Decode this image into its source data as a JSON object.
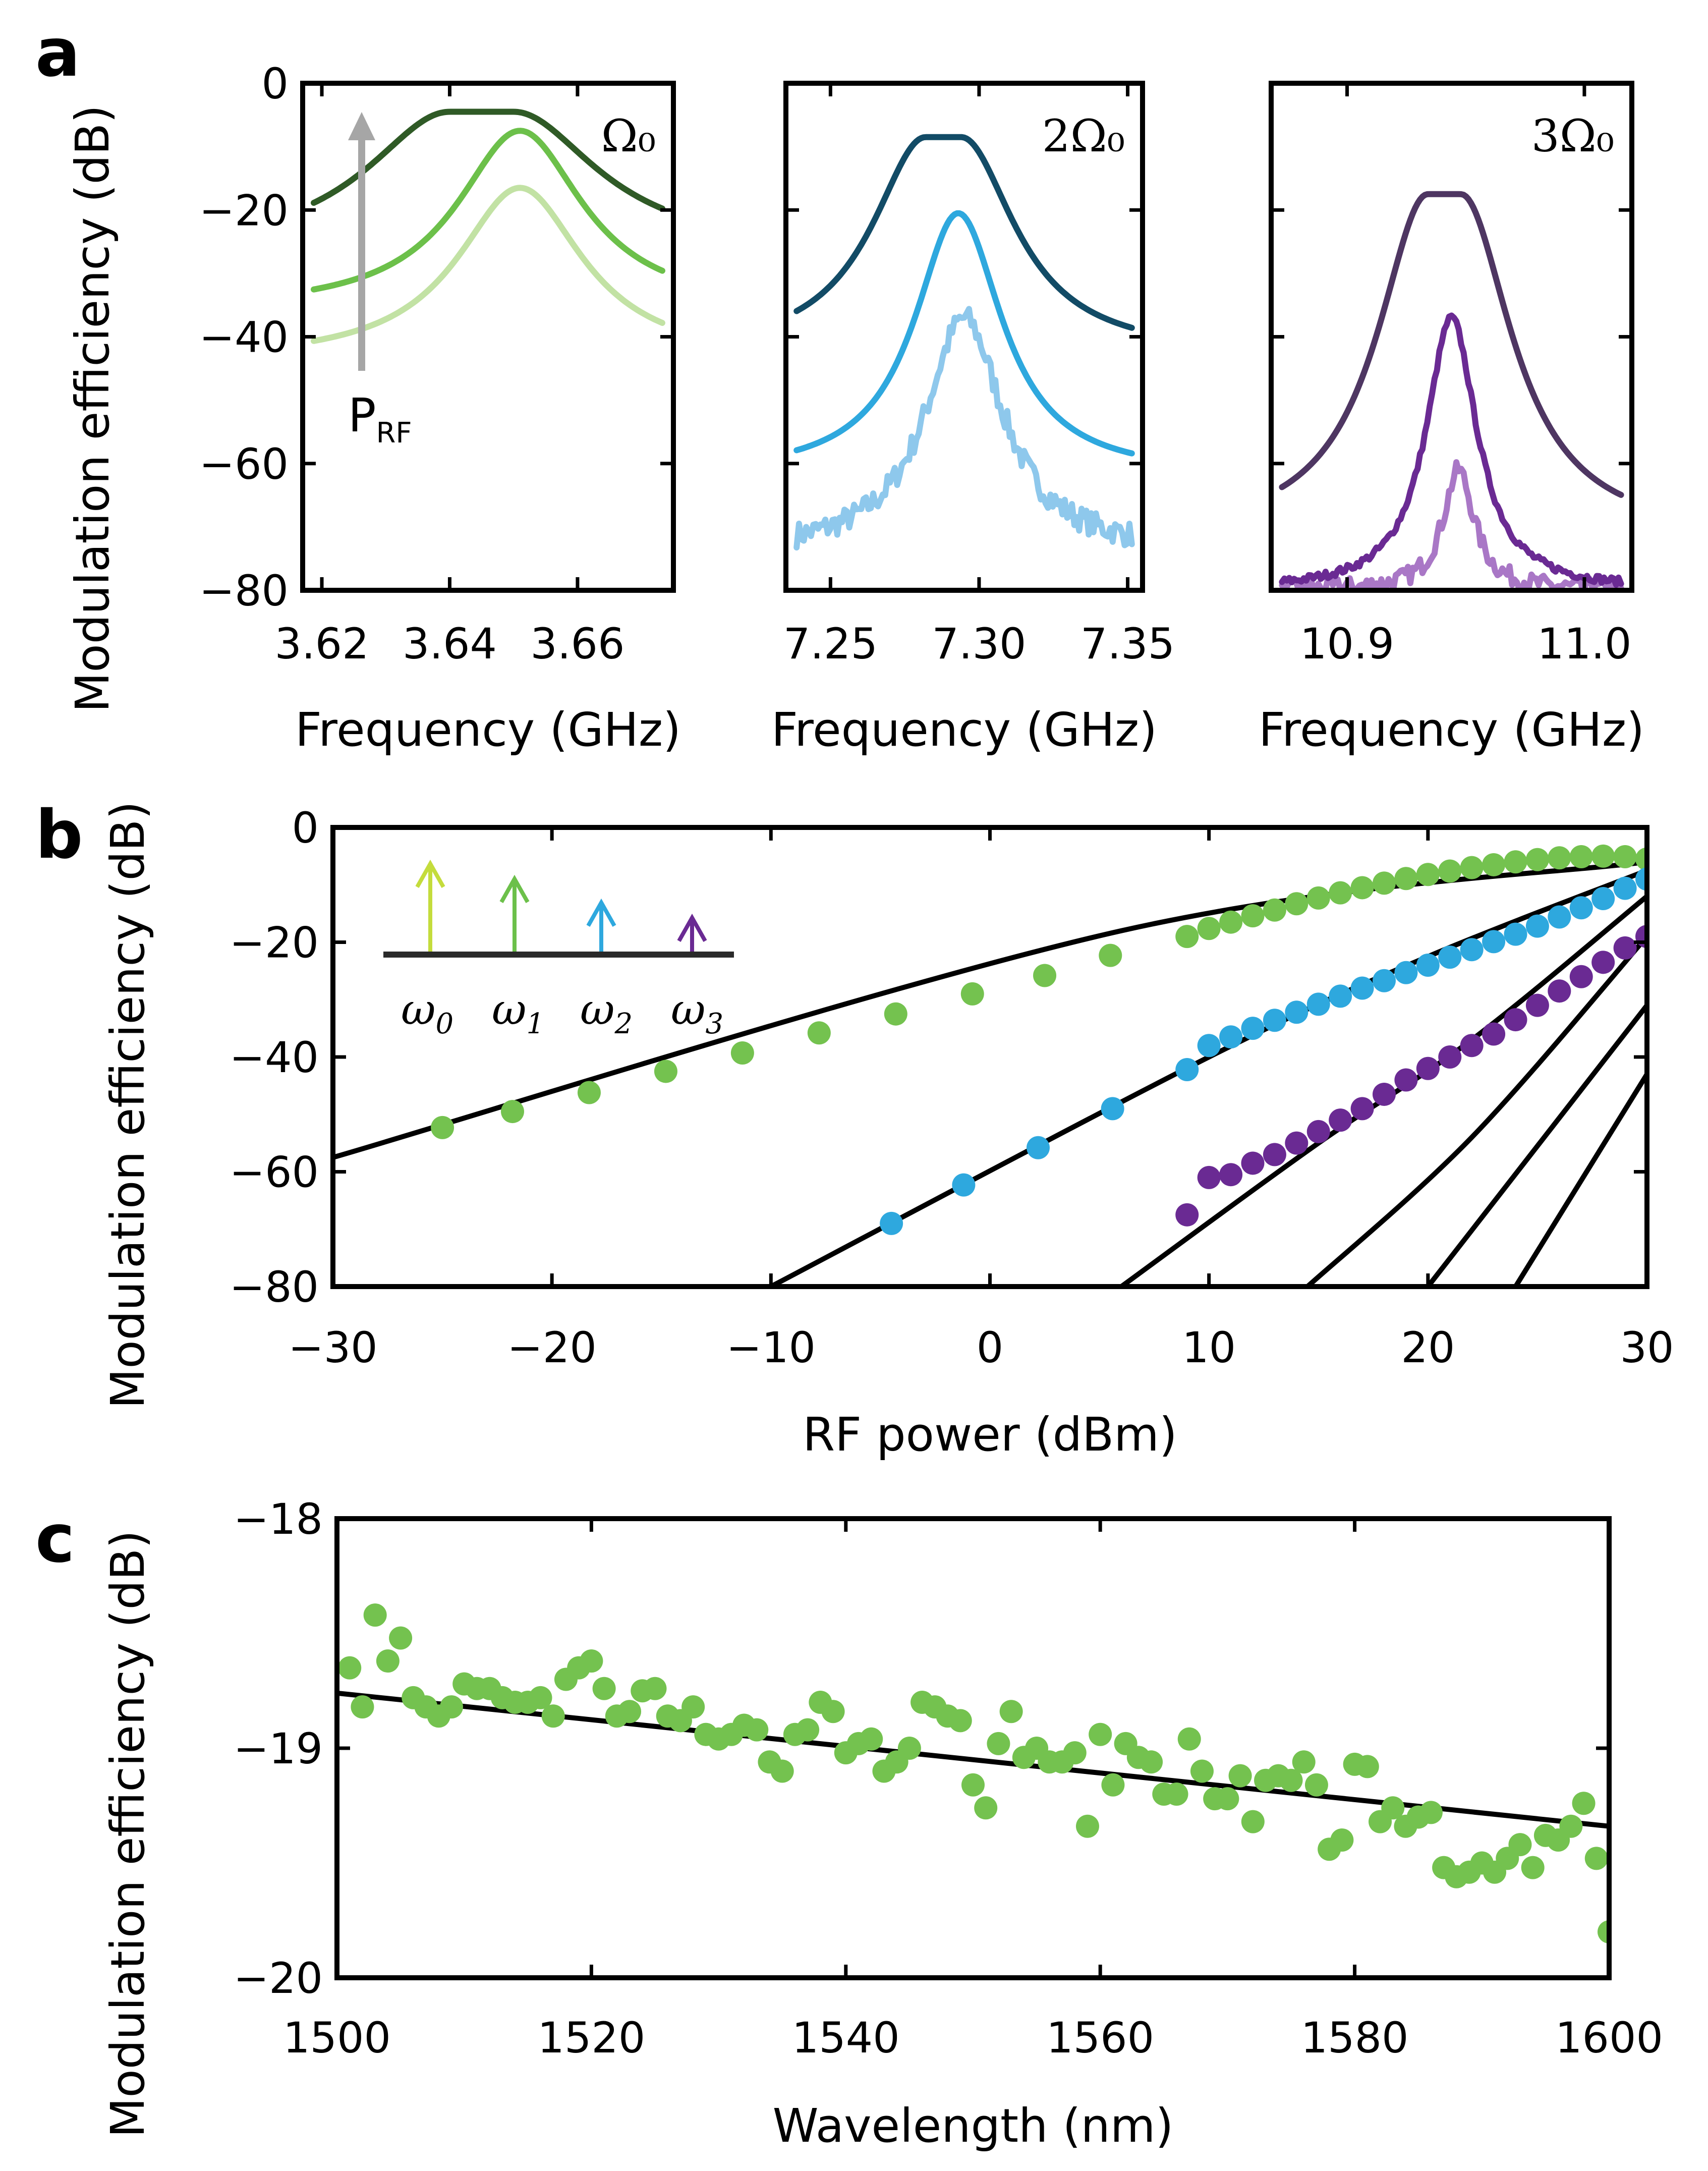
{
  "colors": {
    "fit_line": "#000000",
    "green_dark": "#2f5a26",
    "green_mid": "#6cc04a",
    "green_light": "#c2e2a4",
    "blue_dark": "#124b66",
    "blue_mid": "#2ea8de",
    "blue_light": "#8ec8ec",
    "purple_dark": "#4e3662",
    "purple_mid": "#6a2a93",
    "purple_light": "#a977c6",
    "inset_omega0": "#c4dc3c",
    "inset_omega1": "#6cc04a",
    "inset_omega2": "#2ea8de",
    "inset_omega3": "#6a2a93",
    "arrow_gray": "#a6a6a6",
    "panel_b_green": "#74c24f",
    "panel_b_blue": "#2ea8de",
    "panel_b_purple": "#6a2a93",
    "panel_c_green": "#74c24f"
  },
  "panel_a": {
    "letter": "a",
    "ylabel": "Modulation efficiency (dB)",
    "ylim": [
      -80,
      0
    ],
    "yticks": [
      "0",
      "−20",
      "−40",
      "−60",
      "−80"
    ],
    "subplots": [
      {
        "label": "Ω₀",
        "xlabel": "Frequency (GHz)",
        "xlim": [
          3.617,
          3.675
        ],
        "xticks": [
          "3.62",
          "3.64",
          "3.66"
        ],
        "xtick_values": [
          3.62,
          3.64,
          3.66
        ],
        "arrow_label": "P",
        "arrow_label_sub": "RF",
        "series": [
          {
            "color": "green_light",
            "center": 3.651,
            "peak": -16.5,
            "width": 0.012,
            "floor": -44
          },
          {
            "color": "green_mid",
            "center": 3.651,
            "peak": -7.5,
            "width": 0.012,
            "floor": -36
          },
          {
            "color": "green_dark",
            "center": 3.645,
            "peak": -4.5,
            "width": 0.016,
            "floor": -27,
            "flat": 0.005
          }
        ]
      },
      {
        "label": "2Ω₀",
        "xlabel": "Frequency (GHz)",
        "xlim": [
          7.235,
          7.355
        ],
        "xticks": [
          "7.25",
          "7.30",
          "7.35"
        ],
        "xtick_values": [
          7.25,
          7.3,
          7.35
        ],
        "series": [
          {
            "color": "blue_light",
            "center": 7.295,
            "peak": -37,
            "width": 0.016,
            "floor": -74,
            "noise": 2.0
          },
          {
            "color": "blue_mid",
            "center": 7.293,
            "peak": -20.5,
            "width": 0.018,
            "floor": -62
          },
          {
            "color": "blue_dark",
            "center": 7.288,
            "peak": -8.5,
            "width": 0.022,
            "floor": -43,
            "flat": 0.006
          }
        ]
      },
      {
        "label": "3Ω₀",
        "xlabel": "Frequency (GHz)",
        "xlim": [
          10.868,
          11.02
        ],
        "xticks": [
          "10.9",
          "11.0"
        ],
        "xtick_values": [
          10.9,
          11.0
        ],
        "series": [
          {
            "color": "purple_light",
            "center": 10.947,
            "peak": -61,
            "width": 0.008,
            "floor": -80,
            "noise": 1.5
          },
          {
            "color": "purple_mid",
            "center": 10.944,
            "peak": -37,
            "width": 0.013,
            "floor": -80,
            "noise": 0.6
          },
          {
            "color": "purple_dark",
            "center": 10.941,
            "peak": -17.5,
            "width": 0.026,
            "floor": -72,
            "flat": 0.007
          }
        ]
      }
    ]
  },
  "panel_b": {
    "letter": "b",
    "xlabel": "RF power (dBm)",
    "ylabel": "Modulation efficiency (dB)",
    "xlim": [
      -30,
      30
    ],
    "ylim": [
      -80,
      0
    ],
    "xticks": [
      "−30",
      "−20",
      "−10",
      "0",
      "10",
      "20",
      "30"
    ],
    "xtick_values": [
      -30,
      -20,
      -10,
      0,
      10,
      20,
      30
    ],
    "yticks": [
      "0",
      "−20",
      "−40",
      "−60",
      "−80"
    ],
    "inset_labels": [
      "ω",
      "ω",
      "ω",
      "ω"
    ],
    "inset_subs": [
      "0",
      "1",
      "2",
      "3"
    ],
    "chart_data": {
      "type": "scatter",
      "series": [
        {
          "color": "panel_b_green",
          "x": [
            -25,
            -21.8,
            -18.3,
            -14.8,
            -11.3,
            -7.8,
            -4.3,
            -0.8,
            2.5,
            5.5,
            9,
            10,
            11,
            12,
            13,
            14,
            15,
            16,
            17,
            18,
            19,
            20,
            21,
            22,
            23,
            24,
            25,
            26,
            27,
            28,
            29,
            30
          ],
          "y": [
            -52.3,
            -49.5,
            -46.2,
            -42.5,
            -39.3,
            -35.8,
            -32.5,
            -29,
            -25.8,
            -22.3,
            -19,
            -17.6,
            -16.5,
            -15.4,
            -14.4,
            -13.3,
            -12.3,
            -11.4,
            -10.5,
            -9.7,
            -8.9,
            -8.2,
            -7.6,
            -7,
            -6.5,
            -6,
            -5.6,
            -5.3,
            -5.1,
            -5,
            -5.1,
            -5.5
          ]
        },
        {
          "color": "panel_b_blue",
          "x": [
            -4.5,
            -1.2,
            2.2,
            5.6,
            9,
            10,
            11,
            12,
            13,
            14,
            15,
            16,
            17,
            18,
            19,
            20,
            21,
            22,
            23,
            24,
            25,
            26,
            27,
            28,
            29,
            30
          ],
          "y": [
            -69,
            -62.3,
            -55.8,
            -49,
            -42.2,
            -38,
            -36.5,
            -35,
            -33.6,
            -32.2,
            -30.8,
            -29.4,
            -28,
            -26.7,
            -25.3,
            -24,
            -22.6,
            -21.3,
            -19.9,
            -18.6,
            -17.2,
            -15.6,
            -14,
            -12.4,
            -10.6,
            -9
          ]
        },
        {
          "color": "panel_b_purple",
          "x": [
            9,
            10,
            11,
            12,
            13,
            14,
            15,
            16,
            17,
            18,
            19,
            20,
            21,
            22,
            23,
            24,
            25,
            26,
            27,
            28,
            29,
            30
          ],
          "y": [
            -67.5,
            -61,
            -60.5,
            -58.5,
            -57,
            -55,
            -53,
            -51,
            -49,
            -46.5,
            -44,
            -42,
            -40,
            -38,
            -36,
            -33.5,
            -31,
            -28.5,
            -26,
            -23.5,
            -21,
            -19
          ]
        }
      ],
      "fit_lines": [
        {
          "x": [
            -30,
            6,
            30
          ],
          "y": [
            -57.5,
            -18,
            -6
          ]
        },
        {
          "x": [
            -10,
            10,
            20,
            30
          ],
          "y": [
            -80,
            -40,
            -22.5,
            -7.5
          ]
        },
        {
          "x": [
            6,
            15,
            22,
            30
          ],
          "y": [
            -80,
            -55,
            -37,
            -12
          ]
        },
        {
          "x": [
            14.5,
            22,
            30
          ],
          "y": [
            -80,
            -54,
            -19
          ]
        },
        {
          "x": [
            20,
            30
          ],
          "y": [
            -80,
            -31
          ]
        },
        {
          "x": [
            24,
            30
          ],
          "y": [
            -80,
            -43
          ]
        }
      ]
    }
  },
  "panel_c": {
    "letter": "c",
    "xlabel": "Wavelength (nm)",
    "ylabel": "Modulation efficiency (dB)",
    "xlim": [
      1500,
      1600
    ],
    "ylim": [
      -20,
      -18
    ],
    "xticks": [
      "1500",
      "1520",
      "1540",
      "1560",
      "1580",
      "1600"
    ],
    "xtick_values": [
      1500,
      1520,
      1540,
      1560,
      1580,
      1600
    ],
    "yticks": [
      "−18",
      "−19",
      "−20"
    ],
    "ytick_values": [
      -18,
      -19,
      -20
    ],
    "chart_data": {
      "type": "scatter",
      "fit_line": {
        "x": [
          1500,
          1600
        ],
        "y": [
          -18.76,
          -19.34
        ]
      },
      "x": [
        1501,
        1502,
        1503,
        1504,
        1505,
        1506,
        1507,
        1508,
        1509,
        1510,
        1511,
        1512,
        1513,
        1514,
        1515,
        1516,
        1517,
        1518,
        1519,
        1520,
        1521,
        1522,
        1523,
        1524,
        1525,
        1526,
        1527,
        1528,
        1529,
        1530,
        1531,
        1532,
        1533,
        1534,
        1535,
        1536,
        1537,
        1538,
        1539,
        1540,
        1541,
        1542,
        1543,
        1544,
        1545,
        1546,
        1547,
        1548,
        1549,
        1550,
        1551,
        1552,
        1553,
        1554,
        1555,
        1556,
        1557,
        1558,
        1559,
        1560,
        1561,
        1562,
        1563,
        1564,
        1565,
        1566,
        1567,
        1568,
        1569,
        1570,
        1571,
        1572,
        1573,
        1574,
        1575,
        1576,
        1577,
        1578,
        1579,
        1580,
        1581,
        1582,
        1583,
        1584,
        1585,
        1586,
        1587,
        1588,
        1589,
        1590,
        1591,
        1592,
        1593,
        1594,
        1595,
        1596,
        1597,
        1598,
        1599,
        1600
      ],
      "y": [
        -18.65,
        -18.82,
        -18.42,
        -18.62,
        -18.52,
        -18.78,
        -18.82,
        -18.86,
        -18.82,
        -18.72,
        -18.74,
        -18.74,
        -18.78,
        -18.8,
        -18.8,
        -18.78,
        -18.86,
        -18.7,
        -18.65,
        -18.62,
        -18.74,
        -18.86,
        -18.84,
        -18.75,
        -18.74,
        -18.86,
        -18.88,
        -18.82,
        -18.94,
        -18.96,
        -18.94,
        -18.9,
        -18.92,
        -19.06,
        -19.1,
        -18.94,
        -18.92,
        -18.8,
        -18.84,
        -19.02,
        -18.98,
        -18.96,
        -19.1,
        -19.06,
        -19.0,
        -18.8,
        -18.82,
        -18.86,
        -18.88,
        -19.16,
        -19.26,
        -18.98,
        -18.84,
        -19.04,
        -19.0,
        -19.06,
        -19.06,
        -19.02,
        -19.34,
        -18.94,
        -19.16,
        -18.98,
        -19.04,
        -19.06,
        -19.2,
        -19.2,
        -18.96,
        -19.1,
        -19.22,
        -19.22,
        -19.12,
        -19.32,
        -19.14,
        -19.12,
        -19.14,
        -19.06,
        -19.16,
        -19.44,
        -19.4,
        -19.07,
        -19.08,
        -19.32,
        -19.26,
        -19.34,
        -19.3,
        -19.28,
        -19.52,
        -19.56,
        -19.54,
        -19.5,
        -19.54,
        -19.48,
        -19.42,
        -19.52,
        -19.38,
        -19.4,
        -19.34,
        -19.24,
        -19.48,
        -19.8
      ]
    }
  }
}
